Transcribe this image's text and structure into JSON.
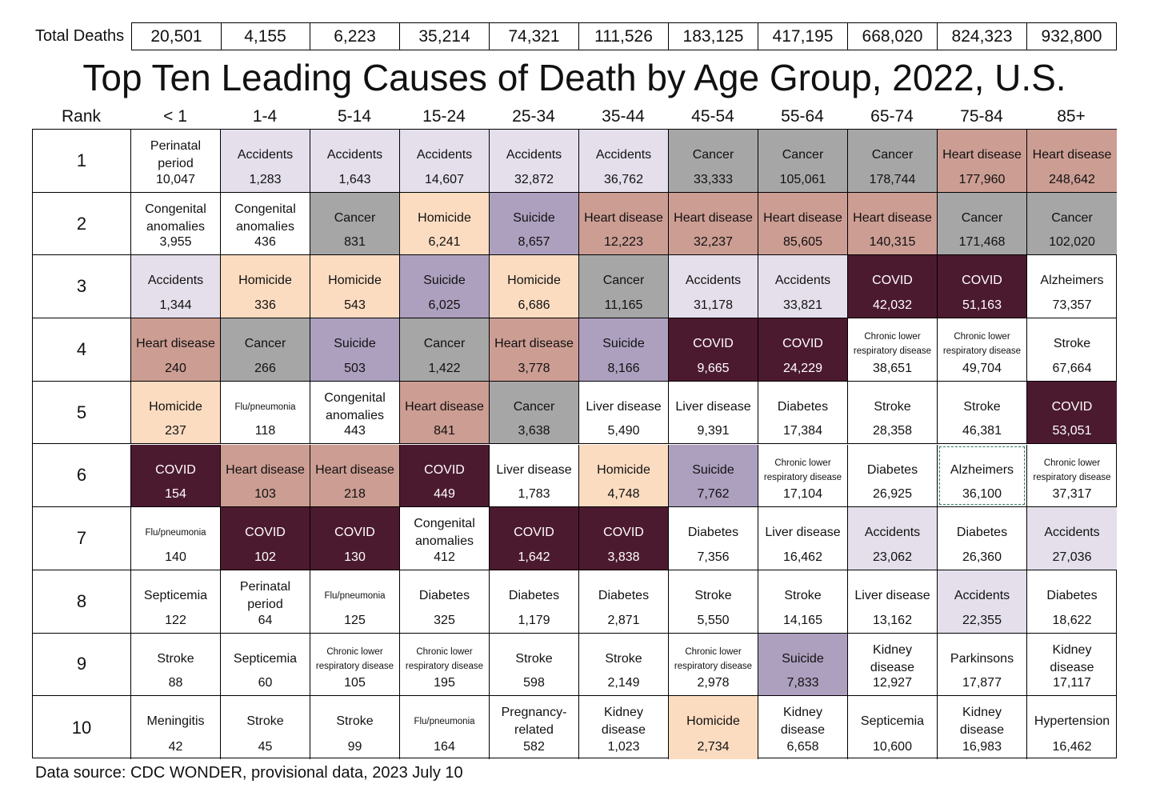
{
  "totals": {
    "label": "Total Deaths",
    "values": [
      "20,501",
      "4,155",
      "6,223",
      "35,214",
      "74,321",
      "111,526",
      "183,125",
      "417,195",
      "668,020",
      "824,323",
      "932,800"
    ]
  },
  "chart_data": {
    "type": "table",
    "title": "Top Ten Leading Causes of Death by Age Group, 2022, U.S.",
    "rank_header": "Rank",
    "age_groups": [
      "< 1",
      "1-4",
      "5-14",
      "15-24",
      "25-34",
      "35-44",
      "45-54",
      "55-64",
      "65-74",
      "75-84",
      "85+"
    ],
    "ranks": [
      "1",
      "2",
      "3",
      "4",
      "5",
      "6",
      "7",
      "8",
      "9",
      "10"
    ],
    "cause_colors": {
      "Accidents": "#e4dfeb",
      "Cancer": "#a6a6a6",
      "Heart disease": "#cc9d93",
      "Homicide": "#fcdcc1",
      "Suicide": "#ada0bf",
      "COVID": "#4c1a2f"
    },
    "dashed_cell": {
      "rank": 6,
      "age_group": "75-84"
    },
    "rows": [
      [
        {
          "cause": "Perinatal period",
          "count": "10,047"
        },
        {
          "cause": "Accidents",
          "count": "1,283"
        },
        {
          "cause": "Accidents",
          "count": "1,643"
        },
        {
          "cause": "Accidents",
          "count": "14,607"
        },
        {
          "cause": "Accidents",
          "count": "32,872"
        },
        {
          "cause": "Accidents",
          "count": "36,762"
        },
        {
          "cause": "Cancer",
          "count": "33,333"
        },
        {
          "cause": "Cancer",
          "count": "105,061"
        },
        {
          "cause": "Cancer",
          "count": "178,744"
        },
        {
          "cause": "Heart disease",
          "count": "177,960"
        },
        {
          "cause": "Heart disease",
          "count": "248,642"
        }
      ],
      [
        {
          "cause": "Congenital anomalies",
          "count": "3,955"
        },
        {
          "cause": "Congenital anomalies",
          "count": "436"
        },
        {
          "cause": "Cancer",
          "count": "831"
        },
        {
          "cause": "Homicide",
          "count": "6,241"
        },
        {
          "cause": "Suicide",
          "count": "8,657"
        },
        {
          "cause": "Heart disease",
          "count": "12,223"
        },
        {
          "cause": "Heart disease",
          "count": "32,237"
        },
        {
          "cause": "Heart disease",
          "count": "85,605"
        },
        {
          "cause": "Heart disease",
          "count": "140,315"
        },
        {
          "cause": "Cancer",
          "count": "171,468"
        },
        {
          "cause": "Cancer",
          "count": "102,020"
        }
      ],
      [
        {
          "cause": "Accidents",
          "count": "1,344"
        },
        {
          "cause": "Homicide",
          "count": "336"
        },
        {
          "cause": "Homicide",
          "count": "543"
        },
        {
          "cause": "Suicide",
          "count": "6,025"
        },
        {
          "cause": "Homicide",
          "count": "6,686"
        },
        {
          "cause": "Cancer",
          "count": "11,165"
        },
        {
          "cause": "Accidents",
          "count": "31,178"
        },
        {
          "cause": "Accidents",
          "count": "33,821"
        },
        {
          "cause": "COVID",
          "count": "42,032"
        },
        {
          "cause": "COVID",
          "count": "51,163"
        },
        {
          "cause": "Alzheimers",
          "count": "73,357"
        }
      ],
      [
        {
          "cause": "Heart disease",
          "count": "240"
        },
        {
          "cause": "Cancer",
          "count": "266"
        },
        {
          "cause": "Suicide",
          "count": "503"
        },
        {
          "cause": "Cancer",
          "count": "1,422"
        },
        {
          "cause": "Heart disease",
          "count": "3,778"
        },
        {
          "cause": "Suicide",
          "count": "8,166"
        },
        {
          "cause": "COVID",
          "count": "9,665"
        },
        {
          "cause": "COVID",
          "count": "24,229"
        },
        {
          "cause": "Chronic lower respiratory disease",
          "count": "38,651"
        },
        {
          "cause": "Chronic lower respiratory disease",
          "count": "49,704"
        },
        {
          "cause": "Stroke",
          "count": "67,664"
        }
      ],
      [
        {
          "cause": "Homicide",
          "count": "237"
        },
        {
          "cause": "Flu/pneumonia",
          "count": "118"
        },
        {
          "cause": "Congenital anomalies",
          "count": "443"
        },
        {
          "cause": "Heart disease",
          "count": "841"
        },
        {
          "cause": "Cancer",
          "count": "3,638"
        },
        {
          "cause": "Liver disease",
          "count": "5,490"
        },
        {
          "cause": "Liver disease",
          "count": "9,391"
        },
        {
          "cause": "Diabetes",
          "count": "17,384"
        },
        {
          "cause": "Stroke",
          "count": "28,358"
        },
        {
          "cause": "Stroke",
          "count": "46,381"
        },
        {
          "cause": "COVID",
          "count": "53,051"
        }
      ],
      [
        {
          "cause": "COVID",
          "count": "154"
        },
        {
          "cause": "Heart disease",
          "count": "103"
        },
        {
          "cause": "Heart disease",
          "count": "218"
        },
        {
          "cause": "COVID",
          "count": "449"
        },
        {
          "cause": "Liver disease",
          "count": "1,783"
        },
        {
          "cause": "Homicide",
          "count": "4,748"
        },
        {
          "cause": "Suicide",
          "count": "7,762"
        },
        {
          "cause": "Chronic lower respiratory disease",
          "count": "17,104"
        },
        {
          "cause": "Diabetes",
          "count": "26,925"
        },
        {
          "cause": "Alzheimers",
          "count": "36,100"
        },
        {
          "cause": "Chronic lower respiratory disease",
          "count": "37,317"
        }
      ],
      [
        {
          "cause": "Flu/pneumonia",
          "count": "140"
        },
        {
          "cause": "COVID",
          "count": "102"
        },
        {
          "cause": "COVID",
          "count": "130"
        },
        {
          "cause": "Congenital anomalies",
          "count": "412"
        },
        {
          "cause": "COVID",
          "count": "1,642"
        },
        {
          "cause": "COVID",
          "count": "3,838"
        },
        {
          "cause": "Diabetes",
          "count": "7,356"
        },
        {
          "cause": "Liver disease",
          "count": "16,462"
        },
        {
          "cause": "Accidents",
          "count": "23,062"
        },
        {
          "cause": "Diabetes",
          "count": "26,360"
        },
        {
          "cause": "Accidents",
          "count": "27,036"
        }
      ],
      [
        {
          "cause": "Septicemia",
          "count": "122"
        },
        {
          "cause": "Perinatal period",
          "count": "64"
        },
        {
          "cause": "Flu/pneumonia",
          "count": "125"
        },
        {
          "cause": "Diabetes",
          "count": "325"
        },
        {
          "cause": "Diabetes",
          "count": "1,179"
        },
        {
          "cause": "Diabetes",
          "count": "2,871"
        },
        {
          "cause": "Stroke",
          "count": "5,550"
        },
        {
          "cause": "Stroke",
          "count": "14,165"
        },
        {
          "cause": "Liver disease",
          "count": "13,162"
        },
        {
          "cause": "Accidents",
          "count": "22,355"
        },
        {
          "cause": "Diabetes",
          "count": "18,622"
        }
      ],
      [
        {
          "cause": "Stroke",
          "count": "88"
        },
        {
          "cause": "Septicemia",
          "count": "60"
        },
        {
          "cause": "Chronic lower respiratory disease",
          "count": "105"
        },
        {
          "cause": "Chronic lower respiratory disease",
          "count": "195"
        },
        {
          "cause": "Stroke",
          "count": "598"
        },
        {
          "cause": "Stroke",
          "count": "2,149"
        },
        {
          "cause": "Chronic lower respiratory disease",
          "count": "2,978"
        },
        {
          "cause": "Suicide",
          "count": "7,833"
        },
        {
          "cause": "Kidney disease",
          "count": "12,927"
        },
        {
          "cause": "Parkinsons",
          "count": "17,877"
        },
        {
          "cause": "Kidney disease",
          "count": "17,117"
        }
      ],
      [
        {
          "cause": "Meningitis",
          "count": "42"
        },
        {
          "cause": "Stroke",
          "count": "45"
        },
        {
          "cause": "Stroke",
          "count": "99"
        },
        {
          "cause": "Flu/pneumonia",
          "count": "164"
        },
        {
          "cause": "Pregnancy-related",
          "count": "582"
        },
        {
          "cause": "Kidney disease",
          "count": "1,023"
        },
        {
          "cause": "Homicide",
          "count": "2,734"
        },
        {
          "cause": "Kidney disease",
          "count": "6,658"
        },
        {
          "cause": "Septicemia",
          "count": "10,600"
        },
        {
          "cause": "Kidney disease",
          "count": "16,983"
        },
        {
          "cause": "Hypertension",
          "count": "16,462"
        }
      ]
    ]
  },
  "source": "Data source: CDC WONDER, provisional data, 2023 July 10"
}
